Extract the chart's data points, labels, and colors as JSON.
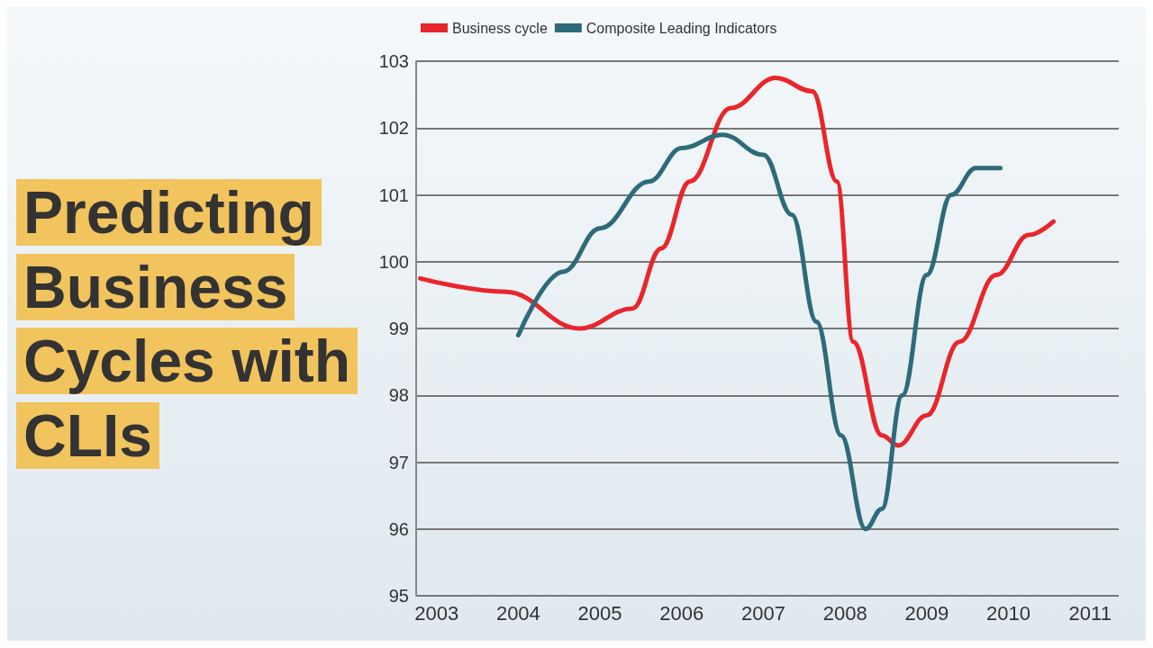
{
  "chart_data": {
    "type": "line",
    "title": "Predicting Business Cycles with CLIs",
    "xlim": [
      2002.75,
      2011.35
    ],
    "xticks": [
      2003,
      2004,
      2005,
      2006,
      2007,
      2008,
      2009,
      2010,
      2011
    ],
    "ylim": [
      95,
      103
    ],
    "yticks": [
      95,
      96,
      97,
      98,
      99,
      100,
      101,
      102,
      103
    ],
    "grid": "y",
    "legend": "top left",
    "marker": "none",
    "line_style": "solid",
    "series": [
      {
        "name": "Business cycle",
        "color": "#e8262b",
        "x": [
          2002.8,
          2003.85,
          2004.75,
          2005.4,
          2005.75,
          2006.1,
          2006.6,
          2007.15,
          2007.6,
          2007.9,
          2008.1,
          2008.45,
          2008.65,
          2009.0,
          2009.4,
          2009.85,
          2010.25,
          2010.55
        ],
        "values": [
          99.75,
          99.55,
          99.0,
          99.3,
          100.2,
          101.2,
          102.3,
          102.75,
          102.55,
          101.2,
          98.8,
          97.4,
          97.25,
          97.7,
          98.8,
          99.8,
          100.4,
          100.6
        ]
      },
      {
        "name": "Composite Leading Indicators",
        "color": "#2e6b7a",
        "x": [
          2004.0,
          2004.55,
          2005.0,
          2005.6,
          2006.0,
          2006.5,
          2007.0,
          2007.35,
          2007.65,
          2007.95,
          2008.25,
          2008.45,
          2008.7,
          2009.0,
          2009.3,
          2009.6,
          2009.9
        ],
        "values": [
          98.9,
          99.85,
          100.5,
          101.2,
          101.7,
          101.9,
          101.6,
          100.7,
          99.1,
          97.4,
          96.0,
          96.3,
          98.0,
          99.8,
          101.0,
          101.4,
          101.4
        ]
      }
    ]
  }
}
